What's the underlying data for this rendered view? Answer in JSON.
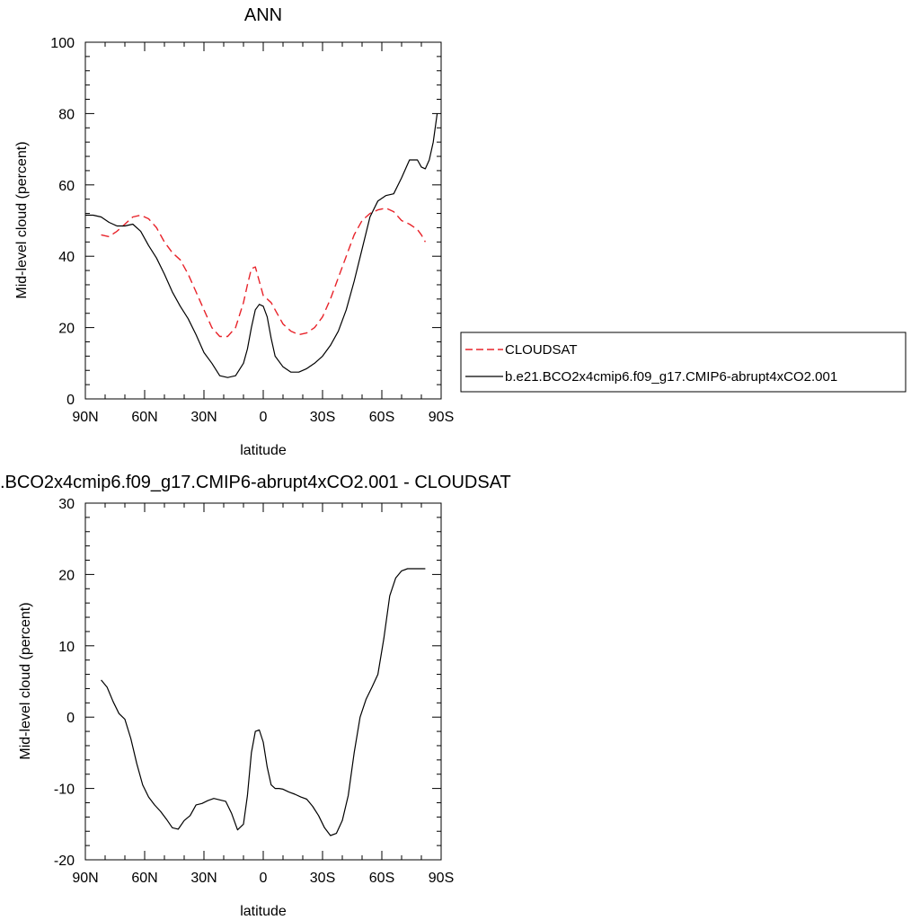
{
  "colors": {
    "observation": "#e8232a",
    "model": "#000000",
    "axis": "#000000"
  },
  "chart_data": [
    {
      "type": "line",
      "title": "ANN",
      "xlabel": "latitude",
      "ylabel": "Mid-level cloud (percent)",
      "xlim": [
        90,
        -90
      ],
      "ylim": [
        0,
        100
      ],
      "x_ticks": [
        90,
        60,
        30,
        0,
        -30,
        -60,
        -90
      ],
      "x_tick_labels": [
        "90N",
        "60N",
        "30N",
        "0",
        "30S",
        "60S",
        "90S"
      ],
      "y_ticks": [
        0,
        20,
        40,
        60,
        80,
        100
      ],
      "y_tick_labels": [
        "0",
        "20",
        "40",
        "60",
        "80",
        "100"
      ],
      "legend": "right",
      "grid": false,
      "series": [
        {
          "name": "CLOUDSAT",
          "style": "dashed",
          "x": [
            82,
            78,
            74,
            70,
            66,
            62,
            58,
            54,
            50,
            46,
            42,
            38,
            34,
            30,
            26,
            22,
            18,
            14,
            10,
            8,
            6,
            4,
            2,
            0,
            -2,
            -4,
            -6,
            -10,
            -14,
            -18,
            -22,
            -26,
            -30,
            -34,
            -38,
            -42,
            -46,
            -50,
            -54,
            -58,
            -62,
            -66,
            -70,
            -74,
            -78,
            -80,
            -82
          ],
          "values": [
            46,
            45.5,
            47,
            49,
            51,
            51.5,
            50.5,
            48,
            44,
            41,
            39,
            35,
            30,
            25,
            20,
            17.5,
            17.5,
            20,
            27,
            32,
            36.5,
            37,
            33,
            29,
            28,
            27,
            25,
            21,
            19,
            18,
            18.5,
            20,
            23,
            28,
            34,
            40,
            46,
            50,
            52,
            53,
            53.5,
            52.5,
            50,
            49,
            47.5,
            46,
            44
          ]
        },
        {
          "name": "b.e21.BCO2x4cmip6.f09_g17.CMIP6-abrupt4xCO2.001",
          "style": "solid",
          "x": [
            90,
            86,
            82,
            78,
            74,
            70,
            66,
            62,
            58,
            54,
            50,
            46,
            42,
            38,
            34,
            30,
            26,
            22,
            18,
            14,
            10,
            8,
            6,
            4,
            2,
            0,
            -2,
            -4,
            -6,
            -10,
            -14,
            -18,
            -22,
            -26,
            -30,
            -34,
            -38,
            -42,
            -46,
            -50,
            -54,
            -58,
            -62,
            -66,
            -70,
            -74,
            -78,
            -80,
            -82,
            -84,
            -86,
            -88
          ],
          "values": [
            51.5,
            51.5,
            51,
            49.5,
            48.5,
            48.5,
            49,
            47,
            43,
            39.5,
            35,
            30,
            26,
            22.5,
            18,
            13,
            10,
            6.5,
            6,
            6.5,
            10,
            14,
            20,
            25,
            26.5,
            26,
            23,
            17,
            12,
            9,
            7.5,
            7.5,
            8.5,
            10,
            12,
            15,
            19,
            25,
            33,
            42,
            51,
            55.5,
            57,
            57.5,
            62,
            67,
            67,
            65,
            64.5,
            67,
            72,
            80
          ]
        }
      ]
    },
    {
      "type": "line",
      "title": ".BCO2x4cmip6.f09_g17.CMIP6-abrupt4xCO2.001 - CLOUDSAT",
      "xlabel": "latitude",
      "ylabel": "Mid-level cloud (percent)",
      "xlim": [
        90,
        -90
      ],
      "ylim": [
        -20,
        30
      ],
      "x_ticks": [
        90,
        60,
        30,
        0,
        -30,
        -60,
        -90
      ],
      "x_tick_labels": [
        "90N",
        "60N",
        "30N",
        "0",
        "30S",
        "60S",
        "90S"
      ],
      "y_ticks": [
        -20,
        -10,
        0,
        10,
        20,
        30
      ],
      "y_tick_labels": [
        "-20",
        "-10",
        "0",
        "10",
        "20",
        "30"
      ],
      "grid": false,
      "series": [
        {
          "style": "solid",
          "x": [
            82,
            79,
            76,
            73,
            70,
            67,
            64,
            61,
            58,
            55,
            52,
            49,
            46,
            43,
            40,
            37,
            34,
            31,
            28,
            25,
            22,
            19,
            16,
            13,
            10,
            8,
            6,
            4,
            2,
            0,
            -2,
            -4,
            -6,
            -8,
            -10,
            -13,
            -16,
            -19,
            -22,
            -25,
            -28,
            -31,
            -34,
            -37,
            -40,
            -43,
            -46,
            -49,
            -52,
            -55,
            -58,
            -61,
            -64,
            -67,
            -70,
            -73,
            -76,
            -79,
            -82
          ],
          "values": [
            5.2,
            4.2,
            2.2,
            0.5,
            -0.3,
            -3,
            -6.5,
            -9.5,
            -11.2,
            -12.3,
            -13.2,
            -14.3,
            -15.5,
            -15.7,
            -14.5,
            -13.8,
            -12.3,
            -12.1,
            -11.7,
            -11.4,
            -11.6,
            -11.8,
            -13.5,
            -15.8,
            -15,
            -11,
            -5,
            -2,
            -1.8,
            -3.5,
            -7,
            -9.5,
            -10,
            -10,
            -10.1,
            -10.5,
            -10.8,
            -11.2,
            -11.5,
            -12.5,
            -13.8,
            -15.5,
            -16.6,
            -16.3,
            -14.5,
            -11,
            -5,
            0,
            2.5,
            4.2,
            6,
            11,
            17,
            19.5,
            20.5,
            20.8,
            20.8,
            20.8,
            20.8
          ]
        }
      ]
    }
  ]
}
